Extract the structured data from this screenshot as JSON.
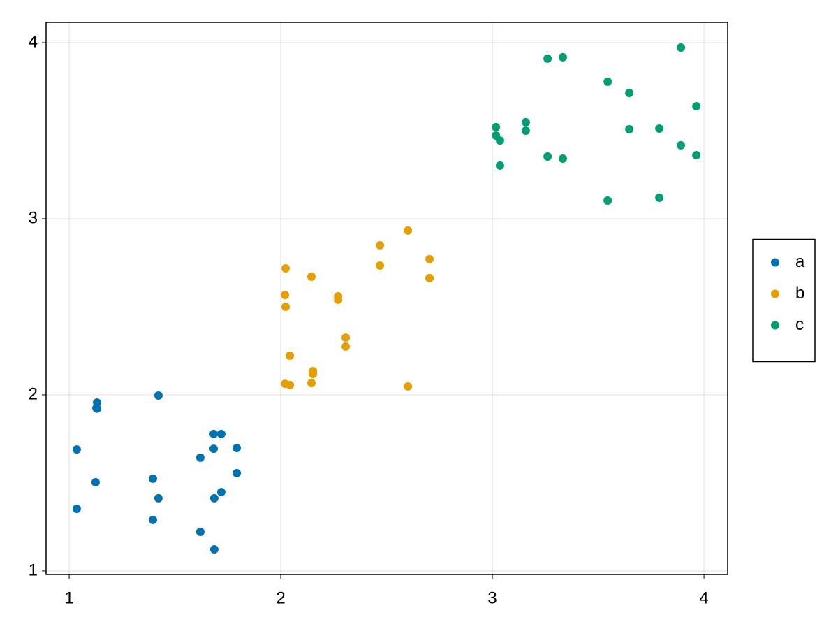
{
  "chart_data": {
    "type": "scatter",
    "xlim": [
      0.891,
      4.112
    ],
    "ylim": [
      0.98,
      4.115
    ],
    "xticks": [
      1,
      2,
      3,
      4
    ],
    "yticks": [
      1,
      2,
      3,
      4
    ],
    "grid": true,
    "legend": "right",
    "series": [
      {
        "name": "a",
        "color": "#0072b2",
        "x": [
          1.036,
          1.036,
          1.132,
          1.129,
          1.132,
          1.125,
          1.422,
          1.396,
          1.422,
          1.396,
          1.62,
          1.62,
          1.683,
          1.719,
          1.683,
          1.792,
          1.792,
          1.719,
          1.686,
          1.686
        ],
        "values": [
          1.69,
          1.353,
          1.956,
          1.925,
          1.922,
          1.504,
          1.996,
          1.524,
          1.413,
          1.29,
          1.643,
          1.222,
          1.778,
          1.778,
          1.694,
          1.698,
          1.556,
          1.448,
          1.413,
          1.123
        ]
      },
      {
        "name": "b",
        "color": "#e69f00",
        "x": [
          2.023,
          2.02,
          2.023,
          2.043,
          2.02,
          2.043,
          2.145,
          2.152,
          2.152,
          2.145,
          2.271,
          2.271,
          2.307,
          2.307,
          2.469,
          2.469,
          2.601,
          2.601,
          2.703,
          2.703
        ],
        "values": [
          2.718,
          2.567,
          2.5,
          2.222,
          2.063,
          2.056,
          2.671,
          2.135,
          2.119,
          2.067,
          2.56,
          2.54,
          2.325,
          2.274,
          2.849,
          2.734,
          2.933,
          2.048,
          2.77,
          2.663
        ]
      },
      {
        "name": "c",
        "color": "#009e73",
        "x": [
          3.017,
          3.017,
          3.036,
          3.036,
          3.158,
          3.158,
          3.261,
          3.333,
          3.261,
          3.333,
          3.545,
          3.545,
          3.647,
          3.647,
          3.789,
          3.789,
          3.891,
          3.891,
          3.964,
          3.964
        ],
        "values": [
          3.52,
          3.472,
          3.444,
          3.302,
          3.548,
          3.5,
          3.909,
          3.917,
          3.353,
          3.341,
          3.778,
          3.103,
          3.714,
          3.508,
          3.512,
          3.119,
          3.972,
          3.417,
          3.639,
          3.361
        ]
      }
    ]
  }
}
